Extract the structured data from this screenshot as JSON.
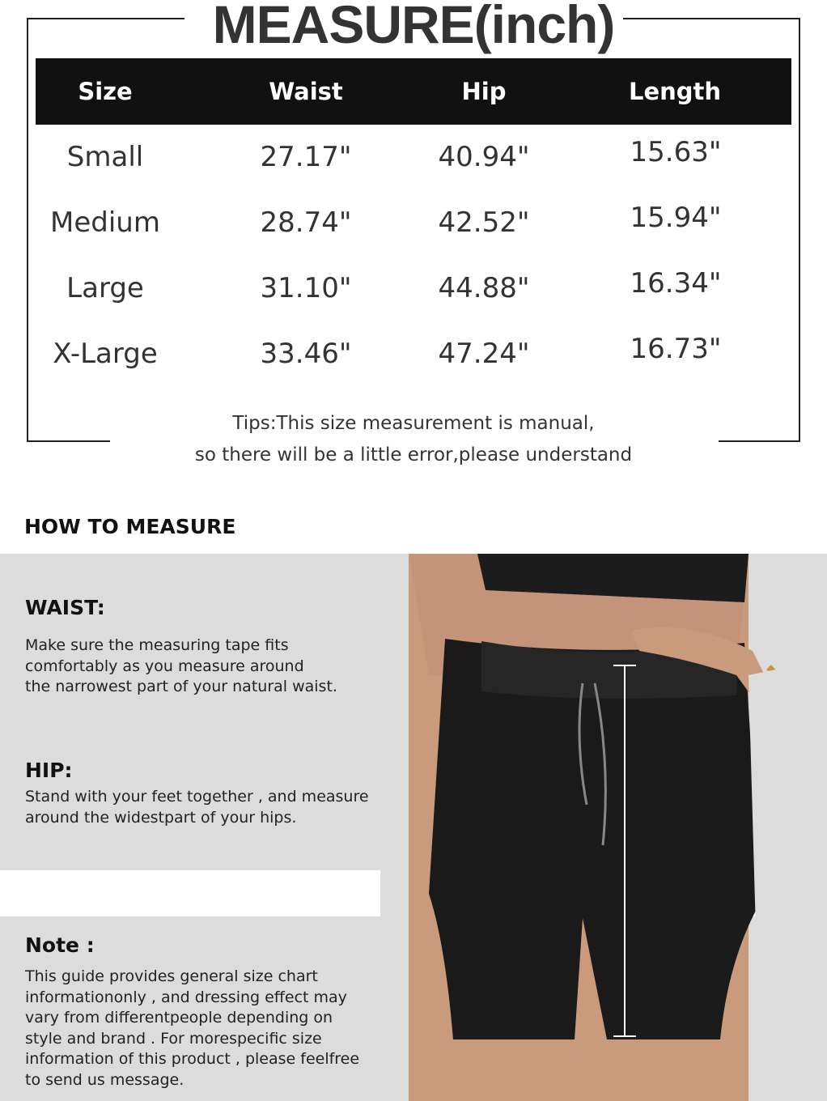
{
  "title": "MEASURE(inch)",
  "table": {
    "headers": [
      "Size",
      "Waist",
      "Hip",
      "Length"
    ],
    "rows": [
      [
        "Small",
        "27.17\"",
        "40.94\"",
        "15.63\""
      ],
      [
        "Medium",
        "28.74\"",
        "42.52\"",
        "15.94\""
      ],
      [
        "Large",
        "31.10\"",
        "44.88\"",
        "16.34\""
      ],
      [
        "X-Large",
        "33.46\"",
        "47.24\"",
        "16.73\""
      ]
    ]
  },
  "tips": [
    "Tips:This size measurement is manual,",
    "so there will be a little error,please understand"
  ],
  "how_to": {
    "heading": "HOW TO MEASURE",
    "waist": {
      "title": "WAIST:",
      "text": "Make sure the measuring tape fits\ncomfortably as you measure around\nthe narrowest part of your natural waist."
    },
    "hip": {
      "title": "HIP:",
      "text": "Stand with your feet together , and measure\naround the widestpart of your hips."
    },
    "note": {
      "title": "Note :",
      "text": "This guide provides general size chart\ninformationonly , and dressing effect may\nvary from differentpeople depending on\nstyle and brand . For morespecific size\ninformation of this product , please feelfree\nto send us message."
    }
  },
  "colors": {
    "header_bg": "#111111",
    "panel_bg": "#dcdcdc",
    "shorts": "#1a1a1a",
    "skin": "#c99a7c"
  }
}
